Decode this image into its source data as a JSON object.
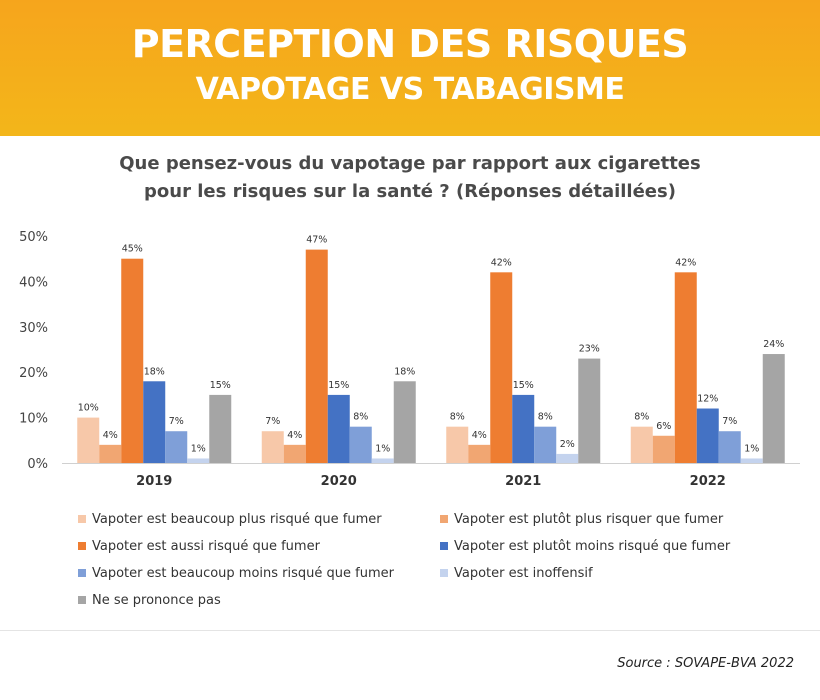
{
  "banner": {
    "title_line1": "PERCEPTION DES RISQUES",
    "title_line2": "VAPOTAGE VS TABAGISME",
    "background": "#f5ab1b"
  },
  "question": {
    "line1": "Que pensez-vous du vapotage par rapport aux cigarettes",
    "line2": "pour les risques sur la santé ? (Réponses détaillées)"
  },
  "chart_data": {
    "type": "bar",
    "categories": [
      "2019",
      "2020",
      "2021",
      "2022"
    ],
    "ylim": [
      0,
      50
    ],
    "y_ticks": [
      "0%",
      "10%",
      "20%",
      "30%",
      "40%",
      "50%"
    ],
    "grid": false,
    "legend_placement": "bottom",
    "series": [
      {
        "name": "Vapoter est beaucoup plus risqué que fumer",
        "color": "#f7c8a9",
        "values": [
          10,
          7,
          8,
          8
        ],
        "labels": [
          "10%",
          "7%",
          "8%",
          "8%"
        ]
      },
      {
        "name": "Vapoter est plutôt plus risquer que fumer",
        "color": "#f1a672",
        "values": [
          4,
          4,
          4,
          6
        ],
        "labels": [
          "4%",
          "4%",
          "4%",
          "6%"
        ]
      },
      {
        "name": "Vapoter est aussi risqué que fumer",
        "color": "#ee7d31",
        "values": [
          45,
          47,
          42,
          42
        ],
        "labels": [
          "45%",
          "47%",
          "42%",
          "42%"
        ]
      },
      {
        "name": "Vapoter est plutôt moins risqué que fumer",
        "color": "#4472c4",
        "values": [
          18,
          15,
          15,
          12
        ],
        "labels": [
          "18%",
          "15%",
          "15%",
          "12%"
        ]
      },
      {
        "name": "Vapoter est beaucoup moins risqué que fumer",
        "color": "#7f9fd8",
        "values": [
          7,
          8,
          8,
          7
        ],
        "labels": [
          "7%",
          "8%",
          "8%",
          "7%"
        ]
      },
      {
        "name": "Vapoter est inoffensif",
        "color": "#c4d3ee",
        "values": [
          1,
          1,
          2,
          1
        ],
        "labels": [
          "1%",
          "1%",
          "2%",
          "1%"
        ]
      },
      {
        "name": "Ne se prononce pas",
        "color": "#a5a5a5",
        "values": [
          15,
          18,
          23,
          24
        ],
        "labels": [
          "15%",
          "18%",
          "23%",
          "24%"
        ]
      }
    ]
  },
  "source": "Source : SOVAPE-BVA 2022"
}
